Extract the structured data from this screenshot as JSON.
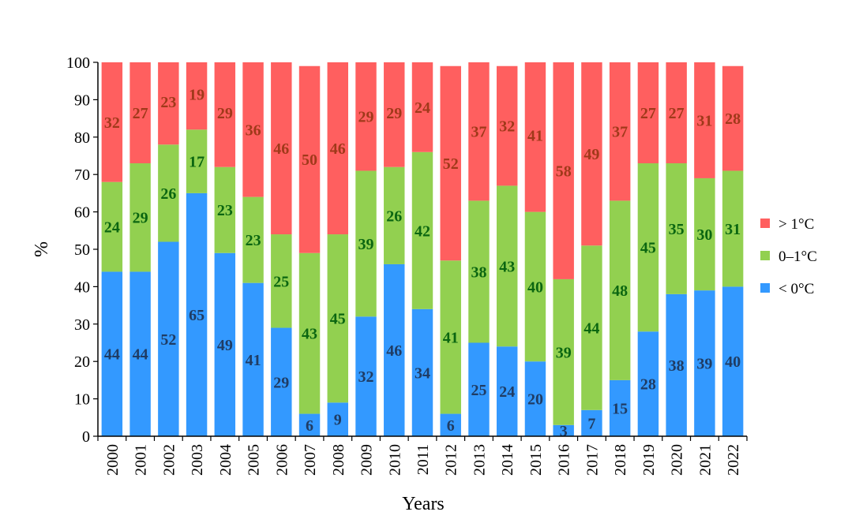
{
  "chart_data": {
    "type": "bar",
    "stacked": true,
    "title": "",
    "xlabel": "Years",
    "ylabel": "%",
    "ylim": [
      0,
      100
    ],
    "yticks": [
      0,
      10,
      20,
      30,
      40,
      50,
      60,
      70,
      80,
      90,
      100
    ],
    "grid": false,
    "legend_position": "right",
    "categories": [
      "2000",
      "2001",
      "2002",
      "2003",
      "2004",
      "2005",
      "2006",
      "2007",
      "2008",
      "2009",
      "2010",
      "2011",
      "2012",
      "2013",
      "2014",
      "2015",
      "2016",
      "2017",
      "2018",
      "2019",
      "2020",
      "2021",
      "2022"
    ],
    "series": [
      {
        "name": "< 0°C",
        "color": "#3399ff",
        "label_color": "#1f3c64",
        "values": [
          44,
          44,
          52,
          65,
          49,
          41,
          29,
          6,
          9,
          32,
          46,
          34,
          6,
          25,
          24,
          20,
          3,
          7,
          15,
          28,
          38,
          39,
          40
        ]
      },
      {
        "name": "0–1°C",
        "color": "#92d050",
        "label_color": "#0b6611",
        "values": [
          24,
          29,
          26,
          17,
          23,
          23,
          25,
          43,
          45,
          39,
          26,
          42,
          41,
          38,
          43,
          40,
          39,
          44,
          48,
          45,
          35,
          30,
          31
        ]
      },
      {
        "name": "> 1°C",
        "color": "#ff5f5f",
        "label_color": "#a0391a",
        "values": [
          32,
          27,
          23,
          19,
          29,
          36,
          46,
          50,
          46,
          29,
          29,
          24,
          52,
          37,
          32,
          41,
          58,
          49,
          37,
          27,
          27,
          31,
          28
        ]
      }
    ],
    "legend_order": [
      "> 1°C",
      "0–1°C",
      "< 0°C"
    ]
  }
}
